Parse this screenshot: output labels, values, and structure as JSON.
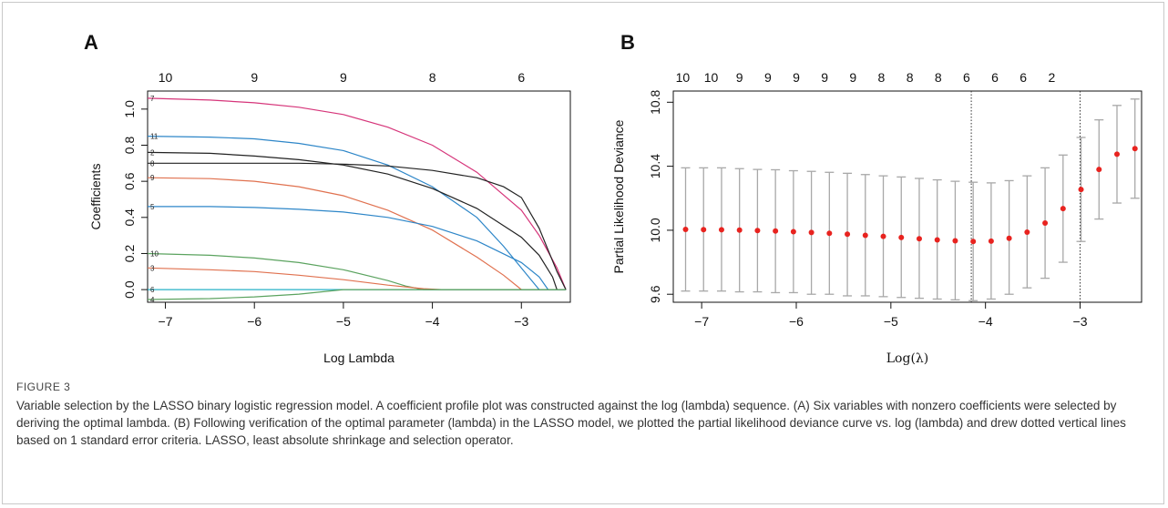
{
  "chart_data": [
    {
      "type": "line",
      "panel": "A",
      "xlabel": "Log Lambda",
      "ylabel": "Coefficients",
      "xlim": [
        -7.2,
        -2.45
      ],
      "ylim": [
        -0.07,
        1.1
      ],
      "xticks": [
        -7,
        -6,
        -5,
        -4,
        -3
      ],
      "yticks": [
        0.0,
        0.2,
        0.4,
        0.6,
        0.8,
        1.0
      ],
      "top_axis_ticks": [
        {
          "x": -7,
          "label": "10"
        },
        {
          "x": -6,
          "label": "9"
        },
        {
          "x": -5,
          "label": "9"
        },
        {
          "x": -4,
          "label": "8"
        },
        {
          "x": -3,
          "label": "6"
        }
      ],
      "series": [
        {
          "name": "7",
          "color": "#d6357a",
          "points": [
            [
              -7.2,
              1.06
            ],
            [
              -6.5,
              1.05
            ],
            [
              -6,
              1.035
            ],
            [
              -5.5,
              1.01
            ],
            [
              -5,
              0.97
            ],
            [
              -4.5,
              0.9
            ],
            [
              -4,
              0.8
            ],
            [
              -3.5,
              0.65
            ],
            [
              -3,
              0.44
            ],
            [
              -2.8,
              0.3
            ],
            [
              -2.6,
              0.12
            ],
            [
              -2.5,
              0.0
            ]
          ]
        },
        {
          "name": "11",
          "color": "#2d86c8",
          "points": [
            [
              -7.2,
              0.85
            ],
            [
              -6.5,
              0.845
            ],
            [
              -6,
              0.835
            ],
            [
              -5.5,
              0.81
            ],
            [
              -5,
              0.77
            ],
            [
              -4.5,
              0.69
            ],
            [
              -4,
              0.57
            ],
            [
              -3.5,
              0.4
            ],
            [
              -3.2,
              0.24
            ],
            [
              -2.9,
              0.06
            ],
            [
              -2.8,
              0.0
            ],
            [
              -2.5,
              0.0
            ]
          ]
        },
        {
          "name": "2",
          "color": "#222222",
          "points": [
            [
              -7.2,
              0.76
            ],
            [
              -6.5,
              0.755
            ],
            [
              -6,
              0.74
            ],
            [
              -5.5,
              0.72
            ],
            [
              -5,
              0.69
            ],
            [
              -4.5,
              0.64
            ],
            [
              -4,
              0.56
            ],
            [
              -3.5,
              0.45
            ],
            [
              -3,
              0.29
            ],
            [
              -2.8,
              0.19
            ],
            [
              -2.65,
              0.07
            ],
            [
              -2.6,
              0.0
            ],
            [
              -2.5,
              0.0
            ]
          ]
        },
        {
          "name": "8",
          "color": "#222222",
          "points": [
            [
              -7.2,
              0.7
            ],
            [
              -6.5,
              0.7
            ],
            [
              -6,
              0.7
            ],
            [
              -5.5,
              0.7
            ],
            [
              -5,
              0.695
            ],
            [
              -4.5,
              0.685
            ],
            [
              -4,
              0.66
            ],
            [
              -3.5,
              0.62
            ],
            [
              -3.2,
              0.57
            ],
            [
              -3,
              0.51
            ],
            [
              -2.8,
              0.34
            ],
            [
              -2.6,
              0.1
            ],
            [
              -2.5,
              0.0
            ]
          ]
        },
        {
          "name": "9",
          "color": "#e0714f",
          "points": [
            [
              -7.2,
              0.62
            ],
            [
              -6.5,
              0.615
            ],
            [
              -6,
              0.6
            ],
            [
              -5.5,
              0.57
            ],
            [
              -5,
              0.52
            ],
            [
              -4.5,
              0.44
            ],
            [
              -4,
              0.33
            ],
            [
              -3.5,
              0.18
            ],
            [
              -3.2,
              0.08
            ],
            [
              -3.0,
              0.0
            ],
            [
              -2.5,
              0.0
            ]
          ]
        },
        {
          "name": "5",
          "color": "#2d86c8",
          "points": [
            [
              -7.2,
              0.46
            ],
            [
              -6.5,
              0.46
            ],
            [
              -6,
              0.455
            ],
            [
              -5.5,
              0.445
            ],
            [
              -5,
              0.43
            ],
            [
              -4.5,
              0.4
            ],
            [
              -4,
              0.35
            ],
            [
              -3.5,
              0.27
            ],
            [
              -3,
              0.15
            ],
            [
              -2.8,
              0.07
            ],
            [
              -2.7,
              0.0
            ],
            [
              -2.5,
              0.0
            ]
          ]
        },
        {
          "name": "10",
          "color": "#5ba35f",
          "points": [
            [
              -7.2,
              0.2
            ],
            [
              -6.5,
              0.19
            ],
            [
              -6,
              0.175
            ],
            [
              -5.5,
              0.15
            ],
            [
              -5,
              0.11
            ],
            [
              -4.5,
              0.05
            ],
            [
              -4.3,
              0.02
            ],
            [
              -4.1,
              0.0
            ],
            [
              -2.5,
              0.0
            ]
          ]
        },
        {
          "name": "3",
          "color": "#e0714f",
          "points": [
            [
              -7.2,
              0.12
            ],
            [
              -6.5,
              0.11
            ],
            [
              -6,
              0.1
            ],
            [
              -5.5,
              0.08
            ],
            [
              -5,
              0.055
            ],
            [
              -4.5,
              0.025
            ],
            [
              -4.1,
              0.005
            ],
            [
              -3.9,
              0.0
            ],
            [
              -2.5,
              0.0
            ]
          ]
        },
        {
          "name": "6",
          "color": "#25b0c7",
          "points": [
            [
              -7.2,
              0.0
            ],
            [
              -2.5,
              0.0
            ]
          ]
        },
        {
          "name": "4",
          "color": "#5ba35f",
          "points": [
            [
              -7.2,
              -0.055
            ],
            [
              -6.5,
              -0.05
            ],
            [
              -6,
              -0.04
            ],
            [
              -5.5,
              -0.025
            ],
            [
              -5.2,
              -0.01
            ],
            [
              -5.0,
              0.0
            ],
            [
              -2.5,
              0.0
            ]
          ]
        }
      ]
    },
    {
      "type": "scatter",
      "panel": "B",
      "xlabel": "Log(λ)",
      "ylabel": "Partial Likelihood Deviance",
      "xlim": [
        -7.3,
        -2.35
      ],
      "ylim": [
        9.55,
        10.87
      ],
      "xticks": [
        -7,
        -6,
        -5,
        -4,
        -3
      ],
      "yticks": [
        9.6,
        10.0,
        10.4,
        10.8
      ],
      "top_axis_ticks": [
        {
          "x": -7.2,
          "label": "10"
        },
        {
          "x": -6.9,
          "label": "10"
        },
        {
          "x": -6.6,
          "label": "9"
        },
        {
          "x": -6.3,
          "label": "9"
        },
        {
          "x": -6.0,
          "label": "9"
        },
        {
          "x": -5.7,
          "label": "9"
        },
        {
          "x": -5.4,
          "label": "9"
        },
        {
          "x": -5.1,
          "label": "8"
        },
        {
          "x": -4.8,
          "label": "8"
        },
        {
          "x": -4.5,
          "label": "8"
        },
        {
          "x": -4.2,
          "label": "6"
        },
        {
          "x": -3.9,
          "label": "6"
        },
        {
          "x": -3.6,
          "label": "6"
        },
        {
          "x": -3.3,
          "label": "2"
        }
      ],
      "vlines": [
        -4.15,
        -3.0
      ],
      "point_color": "#e8231f",
      "errorbar_color": "#a8a8a8",
      "points": [
        {
          "x": -7.17,
          "y": 10.005,
          "lo": 9.62,
          "hi": 10.39
        },
        {
          "x": -6.98,
          "y": 10.004,
          "lo": 9.62,
          "hi": 10.39
        },
        {
          "x": -6.79,
          "y": 10.003,
          "lo": 9.62,
          "hi": 10.39
        },
        {
          "x": -6.6,
          "y": 10.001,
          "lo": 9.615,
          "hi": 10.385
        },
        {
          "x": -6.41,
          "y": 9.998,
          "lo": 9.615,
          "hi": 10.38
        },
        {
          "x": -6.22,
          "y": 9.995,
          "lo": 9.61,
          "hi": 10.378
        },
        {
          "x": -6.03,
          "y": 9.991,
          "lo": 9.61,
          "hi": 10.372
        },
        {
          "x": -5.84,
          "y": 9.986,
          "lo": 9.6,
          "hi": 10.368
        },
        {
          "x": -5.65,
          "y": 9.981,
          "lo": 9.6,
          "hi": 10.362
        },
        {
          "x": -5.46,
          "y": 9.975,
          "lo": 9.59,
          "hi": 10.356
        },
        {
          "x": -5.27,
          "y": 9.968,
          "lo": 9.59,
          "hi": 10.348
        },
        {
          "x": -5.08,
          "y": 9.962,
          "lo": 9.585,
          "hi": 10.34
        },
        {
          "x": -4.89,
          "y": 9.955,
          "lo": 9.58,
          "hi": 10.333
        },
        {
          "x": -4.7,
          "y": 9.947,
          "lo": 9.575,
          "hi": 10.324
        },
        {
          "x": -4.51,
          "y": 9.94,
          "lo": 9.57,
          "hi": 10.315
        },
        {
          "x": -4.32,
          "y": 9.934,
          "lo": 9.565,
          "hi": 10.306
        },
        {
          "x": -4.13,
          "y": 9.93,
          "lo": 9.56,
          "hi": 10.3
        },
        {
          "x": -3.94,
          "y": 9.932,
          "lo": 9.57,
          "hi": 10.296
        },
        {
          "x": -3.75,
          "y": 9.95,
          "lo": 9.6,
          "hi": 10.31
        },
        {
          "x": -3.56,
          "y": 9.988,
          "lo": 9.64,
          "hi": 10.34
        },
        {
          "x": -3.37,
          "y": 10.045,
          "lo": 9.7,
          "hi": 10.39
        },
        {
          "x": -3.18,
          "y": 10.135,
          "lo": 9.8,
          "hi": 10.47
        },
        {
          "x": -2.99,
          "y": 10.255,
          "lo": 9.93,
          "hi": 10.58
        },
        {
          "x": -2.8,
          "y": 10.38,
          "lo": 10.07,
          "hi": 10.69
        },
        {
          "x": -2.61,
          "y": 10.475,
          "lo": 10.17,
          "hi": 10.78
        },
        {
          "x": -2.42,
          "y": 10.51,
          "lo": 10.2,
          "hi": 10.82
        }
      ]
    }
  ],
  "figure": {
    "panel_a_letter": "A",
    "panel_b_letter": "B",
    "caption_label": "FIGURE 3",
    "caption_text": "Variable selection by the LASSO binary logistic regression model. A coefficient profile plot was constructed against the log (lambda) sequence. (A) Six variables with nonzero coefficients were selected by deriving the optimal lambda. (B) Following verification of the optimal parameter (lambda) in the LASSO model, we plotted the partial likelihood deviance curve vs. log (lambda) and drew dotted vertical lines based on 1 standard error criteria. LASSO, least absolute shrinkage and selection operator."
  }
}
